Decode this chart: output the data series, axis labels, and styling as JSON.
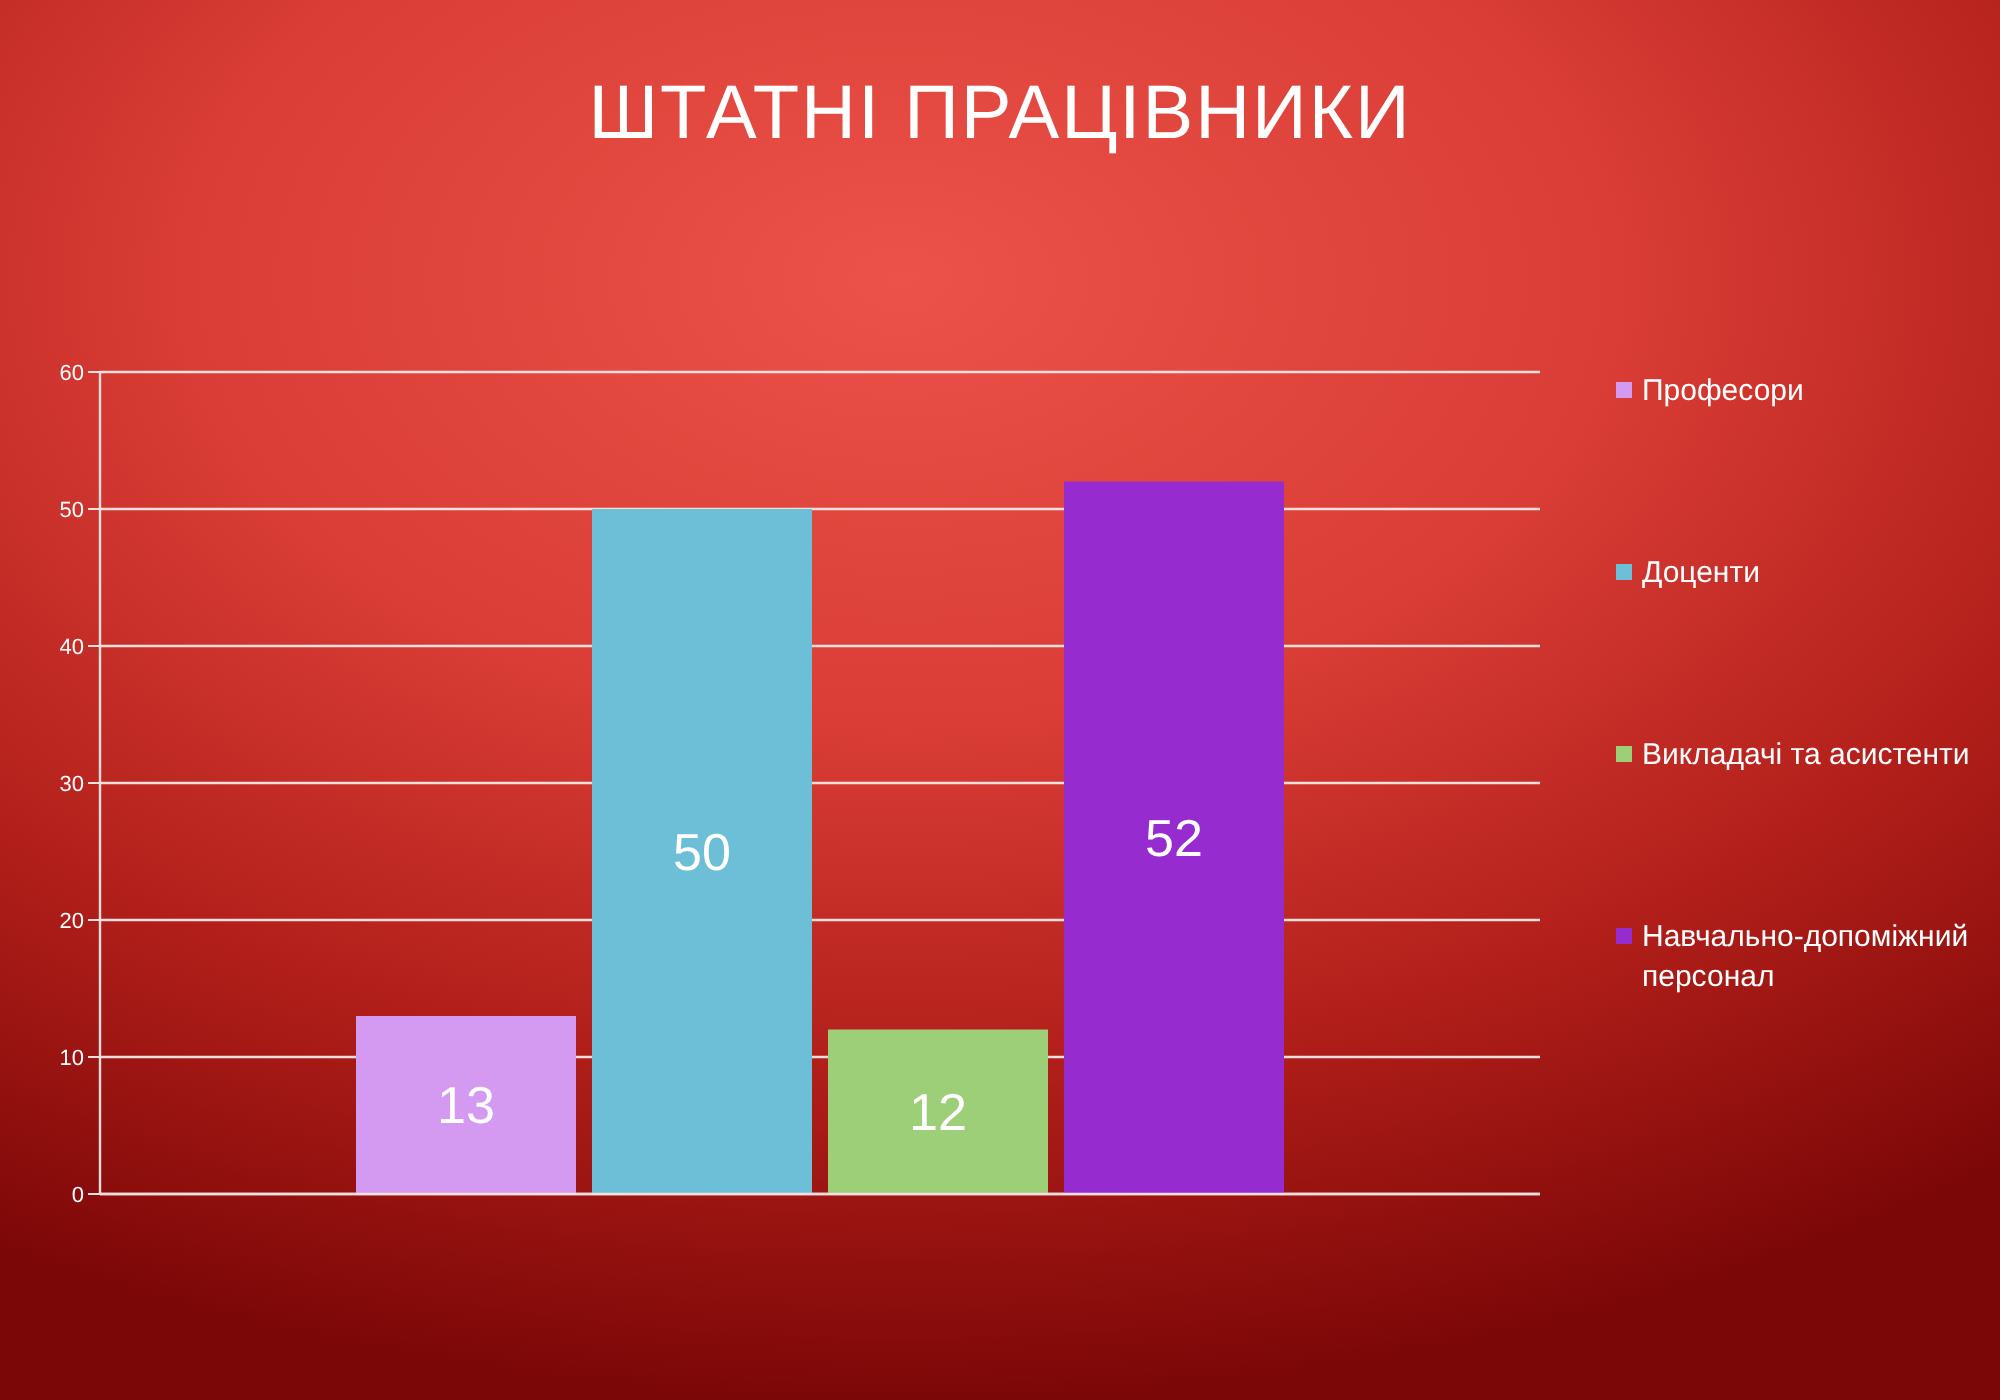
{
  "chart_data": {
    "type": "bar",
    "title": "ШТАТНІ ПРАЦІВНИКИ",
    "categories": [
      null
    ],
    "series": [
      {
        "name": "Професори",
        "color": "#d49af2",
        "values": [
          13
        ]
      },
      {
        "name": "Доценти",
        "color": "#6cbfd6",
        "values": [
          50
        ]
      },
      {
        "name": "Викладачі та асистенти",
        "color": "#9ccf78",
        "values": [
          12
        ]
      },
      {
        "name": "Навчально-допоміжний персонал",
        "color": "#962cd0",
        "values": [
          52
        ]
      }
    ],
    "ylim": [
      0,
      60
    ],
    "yticks": [
      0,
      10,
      20,
      30,
      40,
      50,
      60
    ],
    "grid": "y",
    "legend": "right",
    "data_labels": true
  }
}
